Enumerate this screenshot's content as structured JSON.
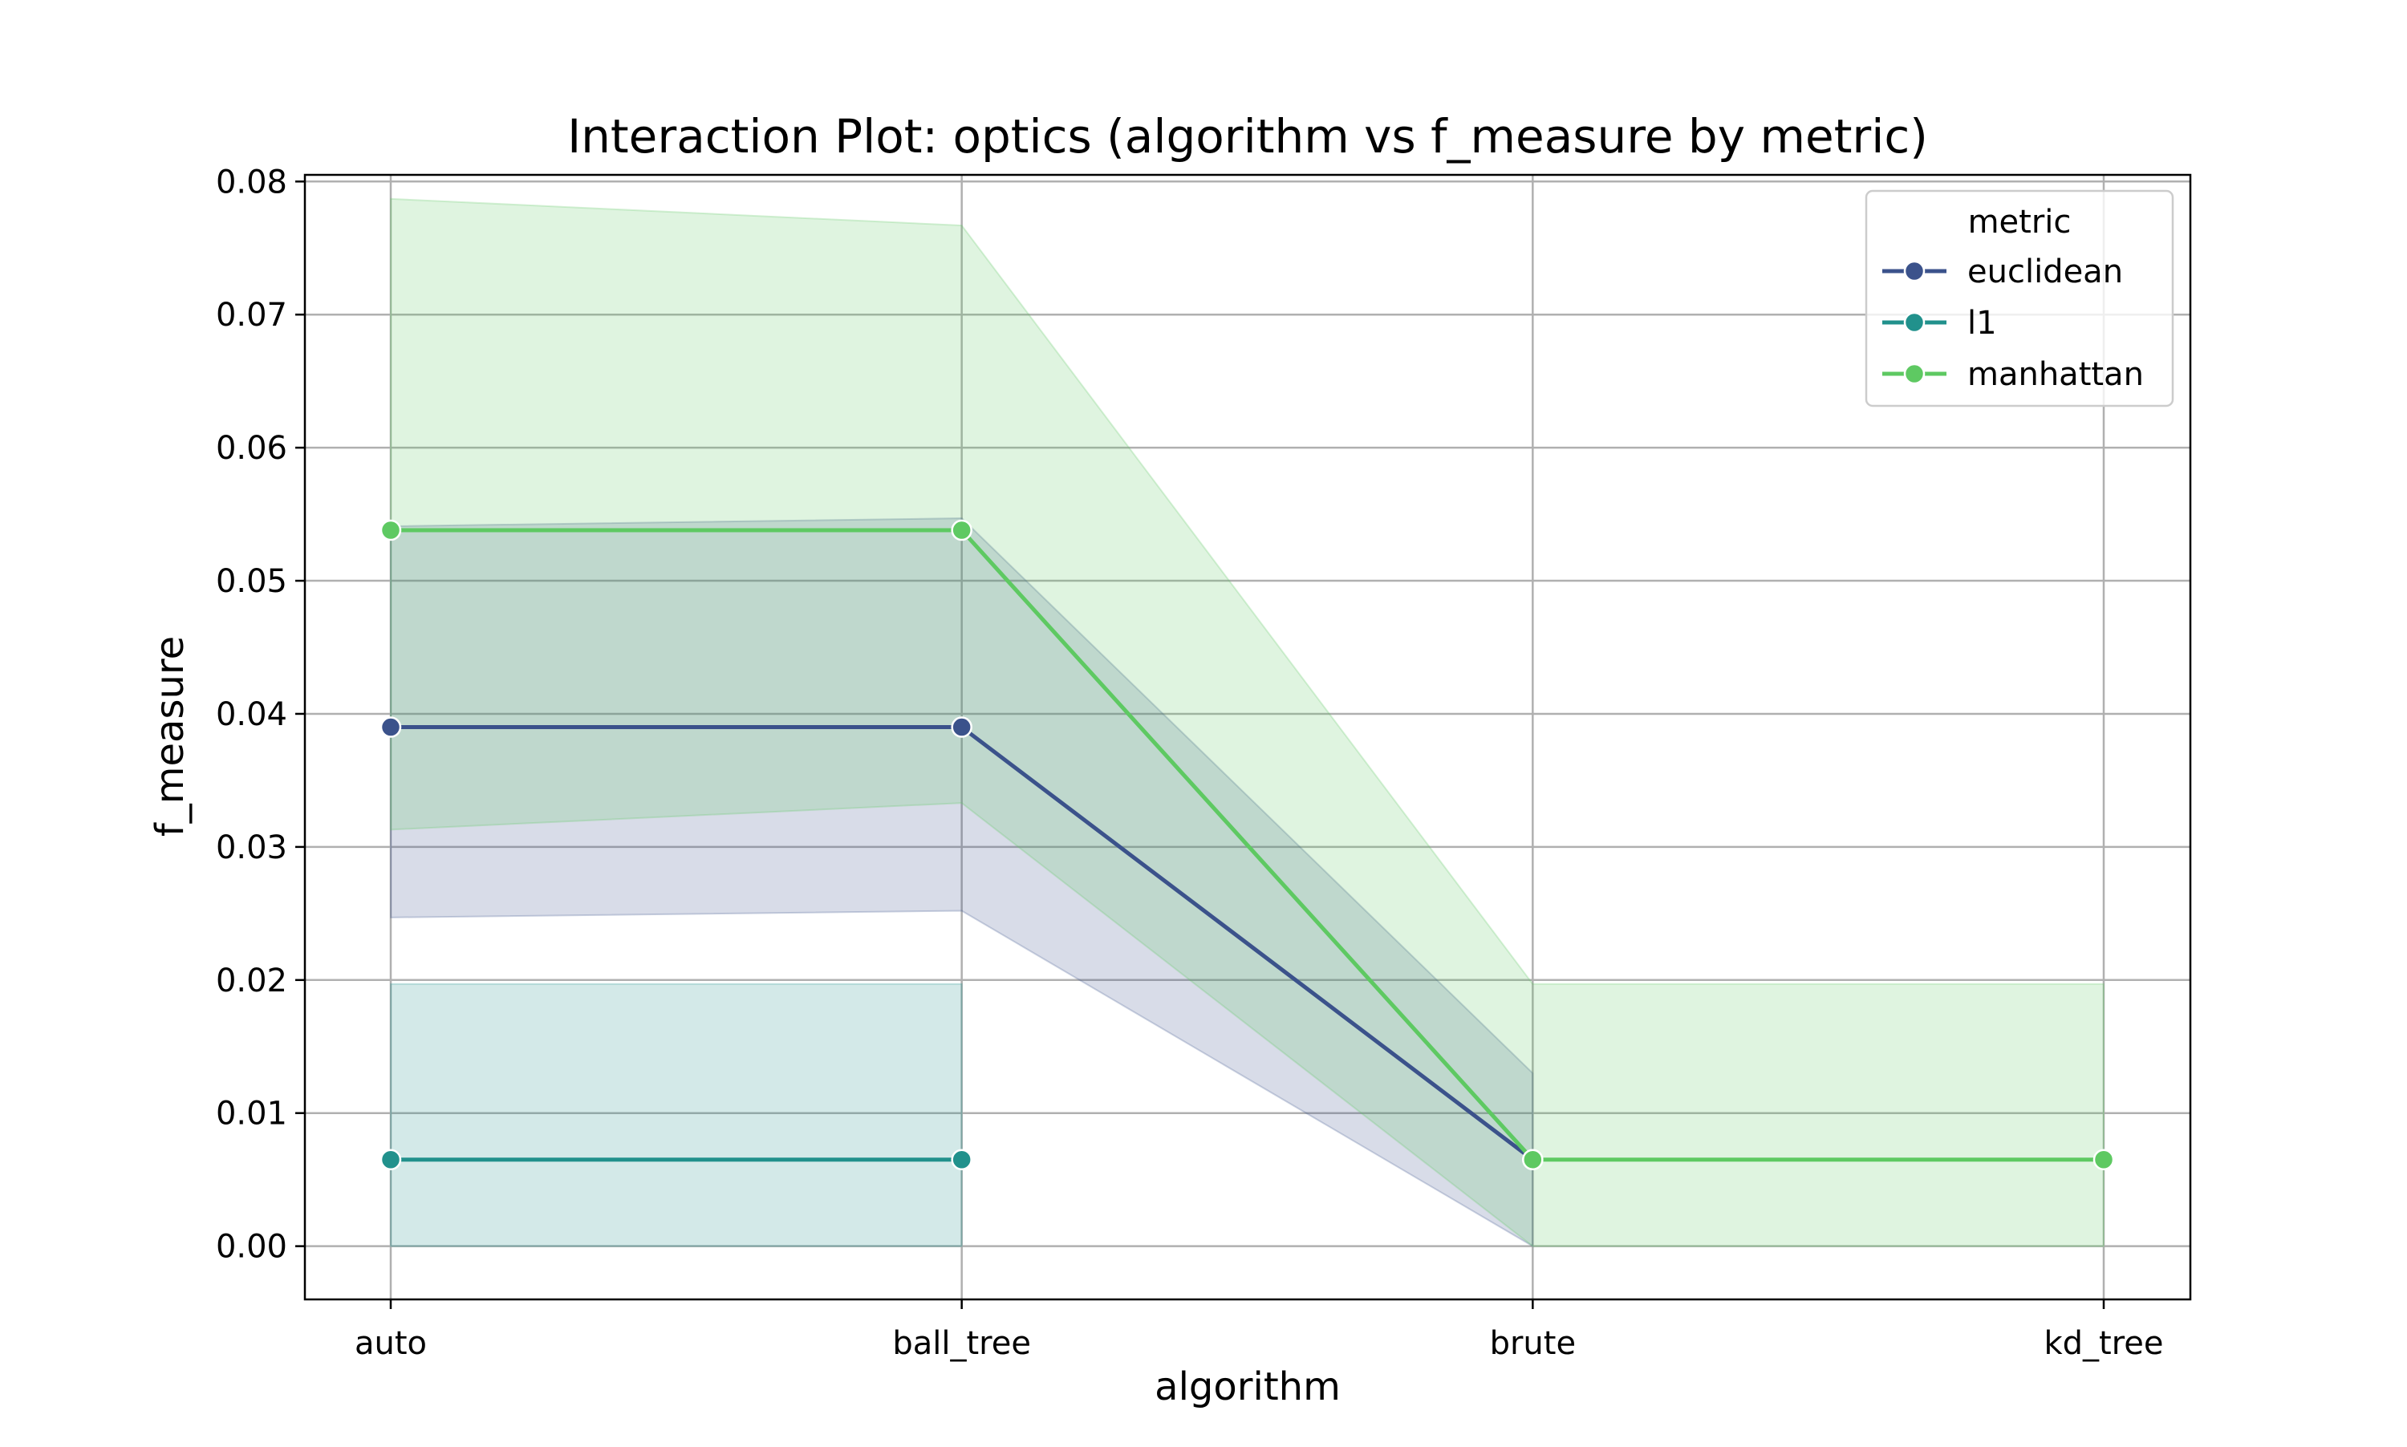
{
  "chart_data": {
    "type": "line",
    "title": "Interaction Plot: optics (algorithm vs f_measure by metric)",
    "xlabel": "algorithm",
    "ylabel": "f_measure",
    "categories": [
      "auto",
      "ball_tree",
      "brute",
      "kd_tree"
    ],
    "ylim": [
      -0.004,
      0.0805
    ],
    "yticks": [
      "0.00",
      "0.01",
      "0.02",
      "0.03",
      "0.04",
      "0.05",
      "0.06",
      "0.07",
      "0.08"
    ],
    "grid": true,
    "legend": {
      "title": "metric",
      "placement": "top-right"
    },
    "series": [
      {
        "name": "euclidean",
        "color": "#3b528b",
        "values": [
          0.039,
          0.039,
          0.0065,
          null
        ],
        "ci_low": [
          0.0247,
          0.0252,
          0.0,
          null
        ],
        "ci_high": [
          0.0541,
          0.0547,
          0.013,
          null
        ]
      },
      {
        "name": "l1",
        "color": "#21918c",
        "values": [
          0.0065,
          0.0065,
          null,
          null
        ],
        "ci_low": [
          0.0,
          0.0,
          null,
          null
        ],
        "ci_high": [
          0.0197,
          0.0197,
          null,
          null
        ]
      },
      {
        "name": "manhattan",
        "color": "#5ec962",
        "values": [
          0.0538,
          0.0538,
          0.0065,
          0.0065
        ],
        "ci_low": [
          0.0313,
          0.0333,
          0.0,
          0.0
        ],
        "ci_high": [
          0.0787,
          0.0767,
          0.0197,
          0.0197
        ]
      }
    ]
  }
}
